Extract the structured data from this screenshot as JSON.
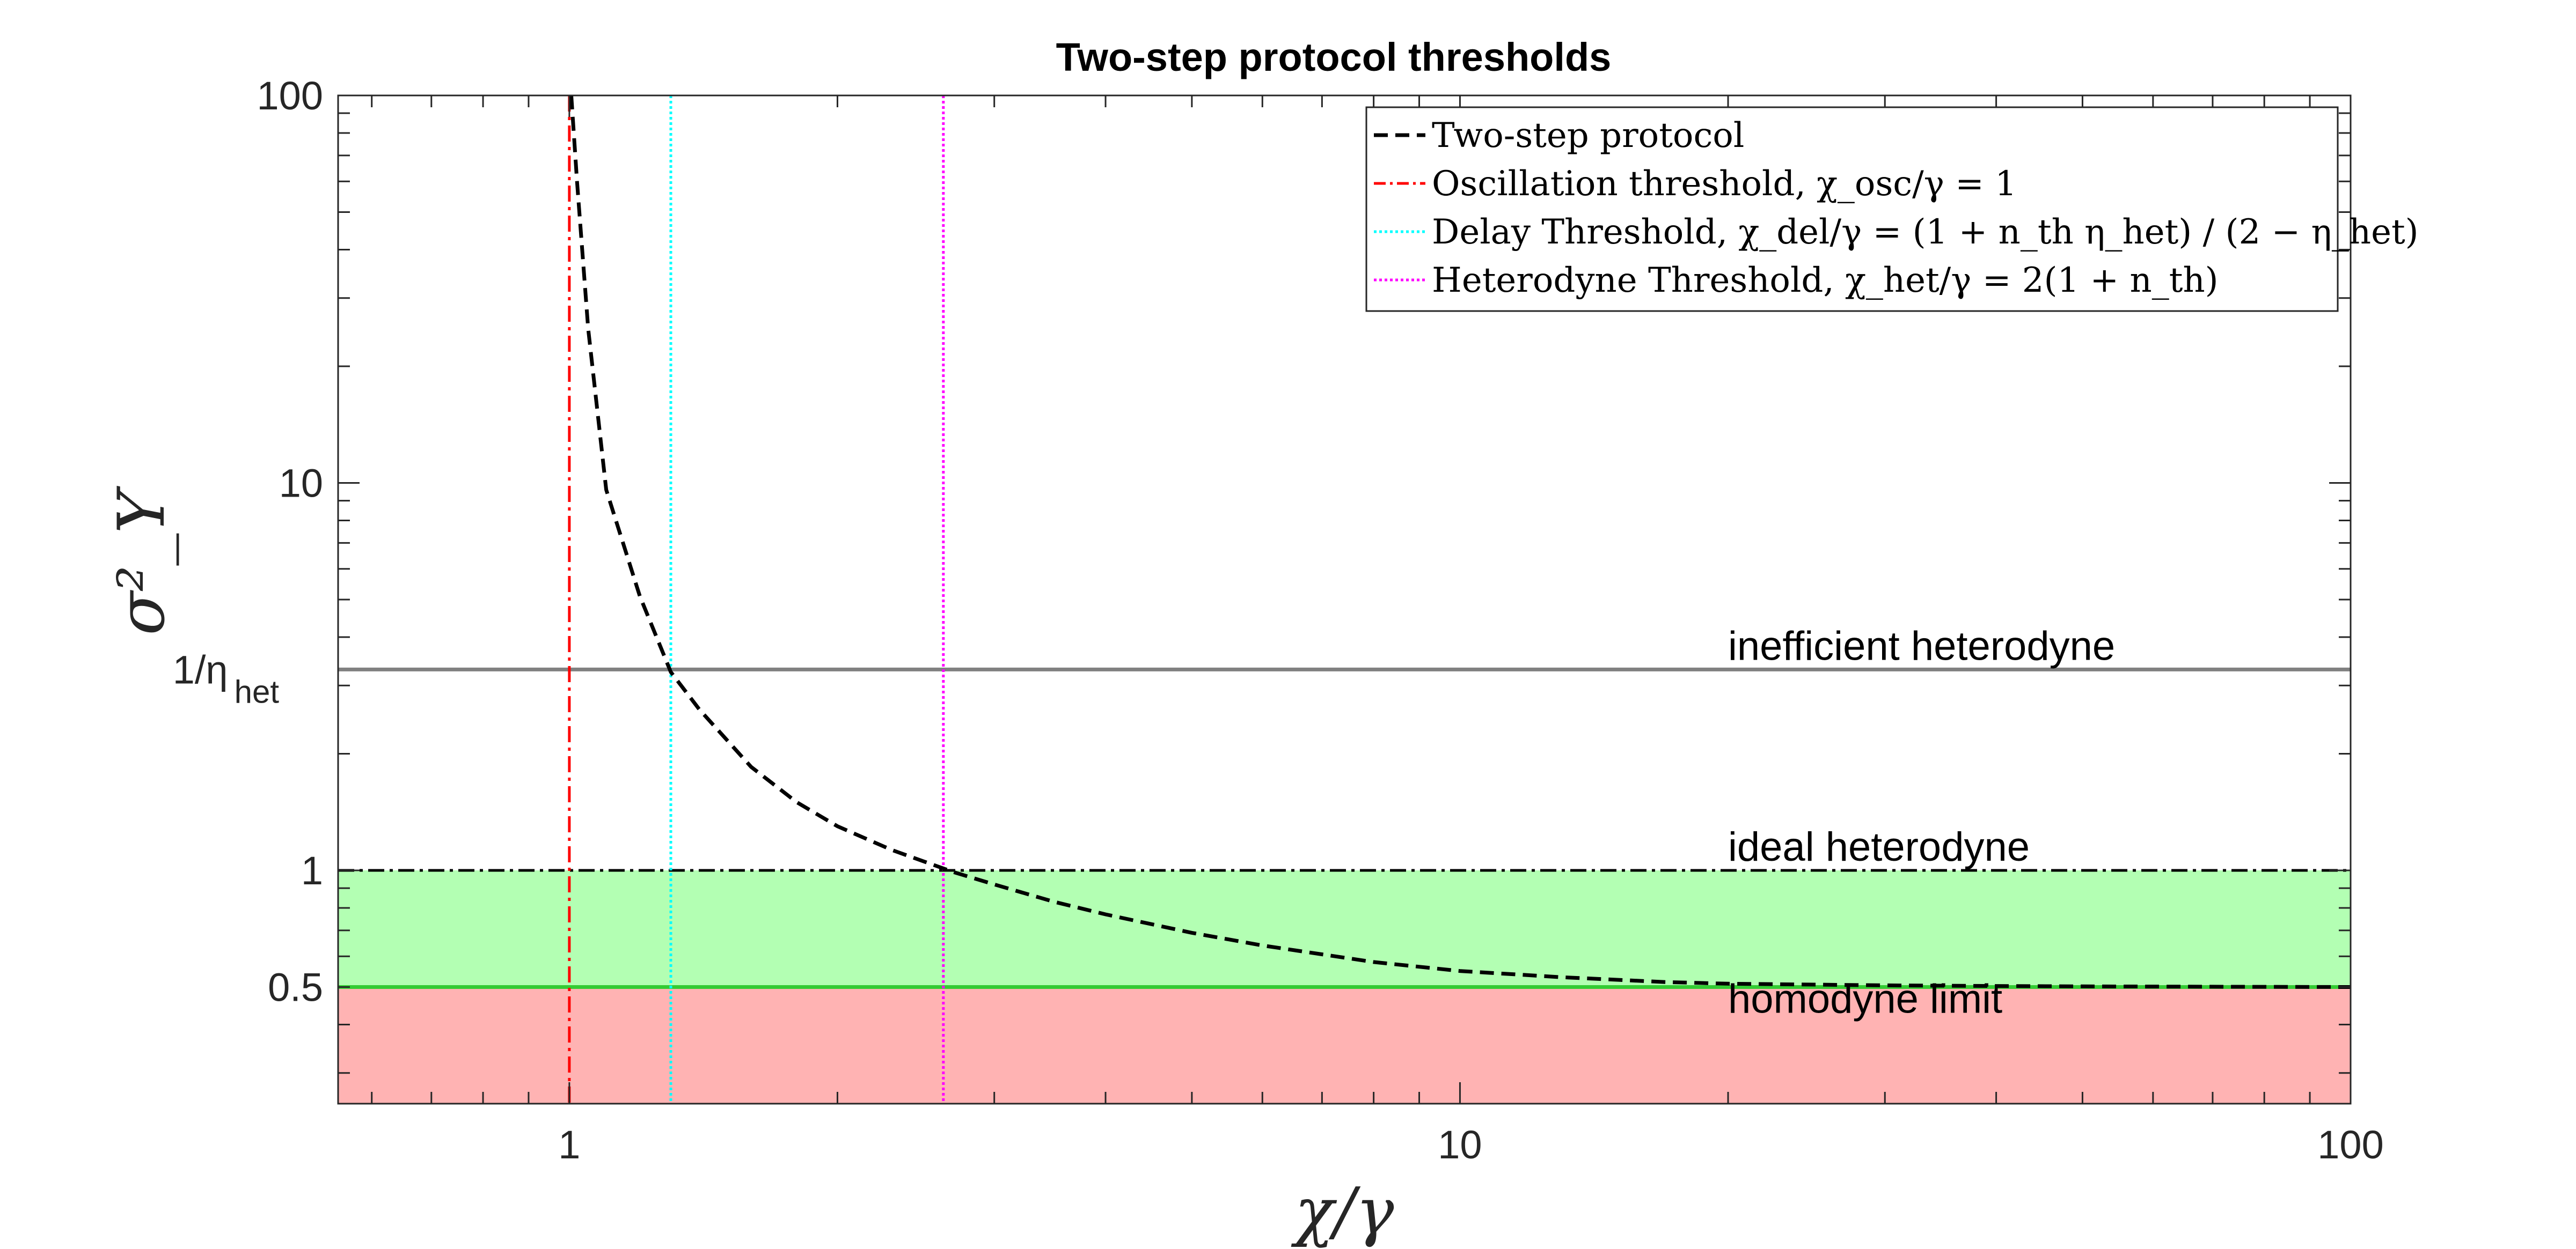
{
  "chart_data": {
    "type": "line",
    "title": "Two-step protocol thresholds",
    "xlabel": "χ/γ",
    "ylabel": "σ²_Y",
    "xscale": "log",
    "yscale": "log",
    "xlim": [
      0.55,
      100
    ],
    "ylim": [
      0.25,
      100
    ],
    "x_ticks": [
      {
        "value": 1,
        "label": "1"
      },
      {
        "value": 10,
        "label": "10"
      },
      {
        "value": 100,
        "label": "100"
      }
    ],
    "y_ticks": [
      {
        "value": 0.5,
        "label": "0.5"
      },
      {
        "value": 1,
        "label": "1"
      },
      {
        "value": 3.3,
        "label": "1/η"
      },
      {
        "value": 10,
        "label": "10"
      },
      {
        "value": 100,
        "label": "100"
      }
    ],
    "y_tick_sub": "het",
    "series": [
      {
        "name": "Two-step protocol",
        "style": "dashed",
        "color": "#000000",
        "x": [
          1.005,
          1.02,
          1.05,
          1.1,
          1.2,
          1.3,
          1.4,
          1.6,
          1.8,
          2.0,
          2.3,
          2.7,
          3.0,
          3.5,
          4.0,
          5.0,
          6.0,
          8.0,
          10.0,
          13.0,
          17.0,
          20.0,
          30.0,
          40.0,
          50.0,
          70.0,
          100.0
        ],
        "y": [
          100,
          60,
          25,
          9.6,
          5.1,
          3.25,
          2.6,
          1.85,
          1.5,
          1.3,
          1.13,
          0.99,
          0.92,
          0.83,
          0.77,
          0.69,
          0.64,
          0.58,
          0.55,
          0.53,
          0.515,
          0.51,
          0.505,
          0.503,
          0.502,
          0.501,
          0.5
        ]
      },
      {
        "name": "Oscillation threshold, χ_osc/γ = 1",
        "style": "dashdot",
        "color": "#ff0000",
        "vline": 1.0
      },
      {
        "name": "Delay Threshold, χ_del/γ = (1 + n_th η_het) / (2 − η_het)",
        "style": "dotted",
        "color": "#00ffff",
        "vline": 1.3
      },
      {
        "name": "Heterodyne Threshold, χ_het/γ = 2(1 + n_th)",
        "style": "dotted",
        "color": "#ff00ff",
        "vline": 2.63
      }
    ],
    "reference_lines": [
      {
        "label": "inefficient heterodyne",
        "y": 3.3,
        "color": "#808080",
        "style": "solid"
      },
      {
        "label": "ideal heterodyne",
        "y": 1.0,
        "color": "#000000",
        "style": "dashdot"
      },
      {
        "label": "homodyne limit",
        "y": 0.5,
        "color": "#33cc33",
        "style": "solid"
      }
    ],
    "regions": [
      {
        "from": 0.5,
        "to": 1.0,
        "color": "#b3ffb3"
      },
      {
        "from": 0.25,
        "to": 0.5,
        "color": "#ffb3b3"
      }
    ],
    "legend": {
      "placement": "top-right"
    },
    "grid": false
  }
}
